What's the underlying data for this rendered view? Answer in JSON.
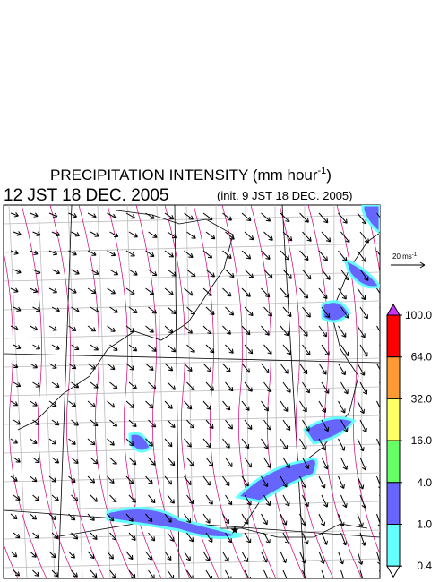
{
  "title": {
    "text": "PRECIPITATION INTENSITY (mm hour",
    "superscript": "-1",
    "close": ")"
  },
  "time": "12 JST 18 DEC. 2005",
  "init": "(init. 9 JST 18 DEC. 2005)",
  "vector_scale": {
    "text": "20 ms",
    "superscript": "-1"
  },
  "colorbar": {
    "levels": [
      {
        "value": 100,
        "label": "100.0"
      },
      {
        "value": 64,
        "label": "64.0"
      },
      {
        "value": 32,
        "label": "32.0"
      },
      {
        "value": 16,
        "label": "16.0"
      },
      {
        "value": 4,
        "label": "4.0"
      },
      {
        "value": 1,
        "label": "1.0"
      },
      {
        "value": 0.4,
        "label": "0.4"
      }
    ],
    "colors": [
      "#ff0000",
      "#ff9933",
      "#ffff66",
      "#66ff66",
      "#6666ff",
      "#66ffff"
    ],
    "over_color": "#cc33ff",
    "under_color": "#ffffff"
  }
}
